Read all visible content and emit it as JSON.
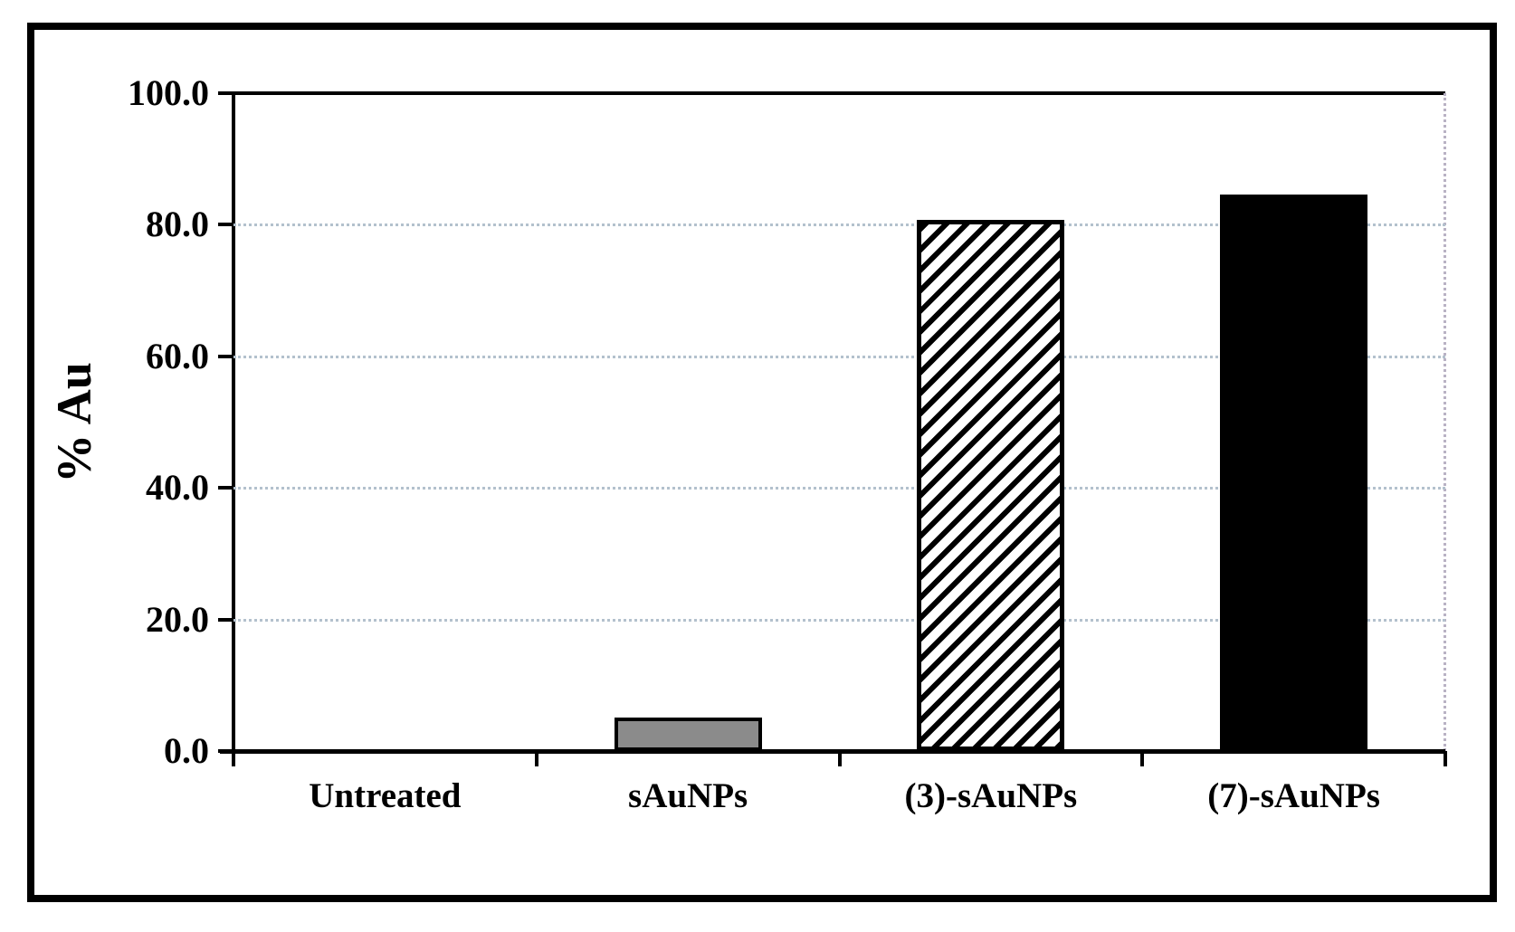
{
  "chart_data": {
    "type": "bar",
    "title": "",
    "xlabel": "",
    "ylabel": "% Au",
    "categories": [
      "Untreated",
      "sAuNPs",
      "(3)-sAuNPs",
      "(7)-sAuNPs"
    ],
    "values": [
      0.0,
      5.1,
      80.8,
      84.6
    ],
    "ylim": [
      0,
      100
    ],
    "yticks": [
      {
        "value": 0,
        "label": "0.0"
      },
      {
        "value": 20,
        "label": "20.0"
      },
      {
        "value": 40,
        "label": "40.0"
      },
      {
        "value": 60,
        "label": "60.0"
      },
      {
        "value": 80,
        "label": "80.0"
      },
      {
        "value": 100,
        "label": "100.0"
      }
    ],
    "grid_horizontal_at": [
      20,
      40,
      60,
      80
    ],
    "grid_style": "dotted",
    "legend_position": "none",
    "bar_patterns": [
      "none",
      "solid-gray",
      "diagonal-hatch",
      "solid-black"
    ],
    "hatch_direction": "forward-slash-45deg",
    "colors": {
      "axis": "#000000",
      "text": "#000000",
      "gridline": "#b3c1cd",
      "plot_right_border": "#b9b2c4",
      "bar_gray_fill": "#8b8b8b",
      "bar_hatch_fg": "#000000",
      "bar_hatch_bg": "#ffffff",
      "bar_black_fill": "#000000",
      "figure_border": "#000000",
      "background": "#ffffff"
    }
  }
}
